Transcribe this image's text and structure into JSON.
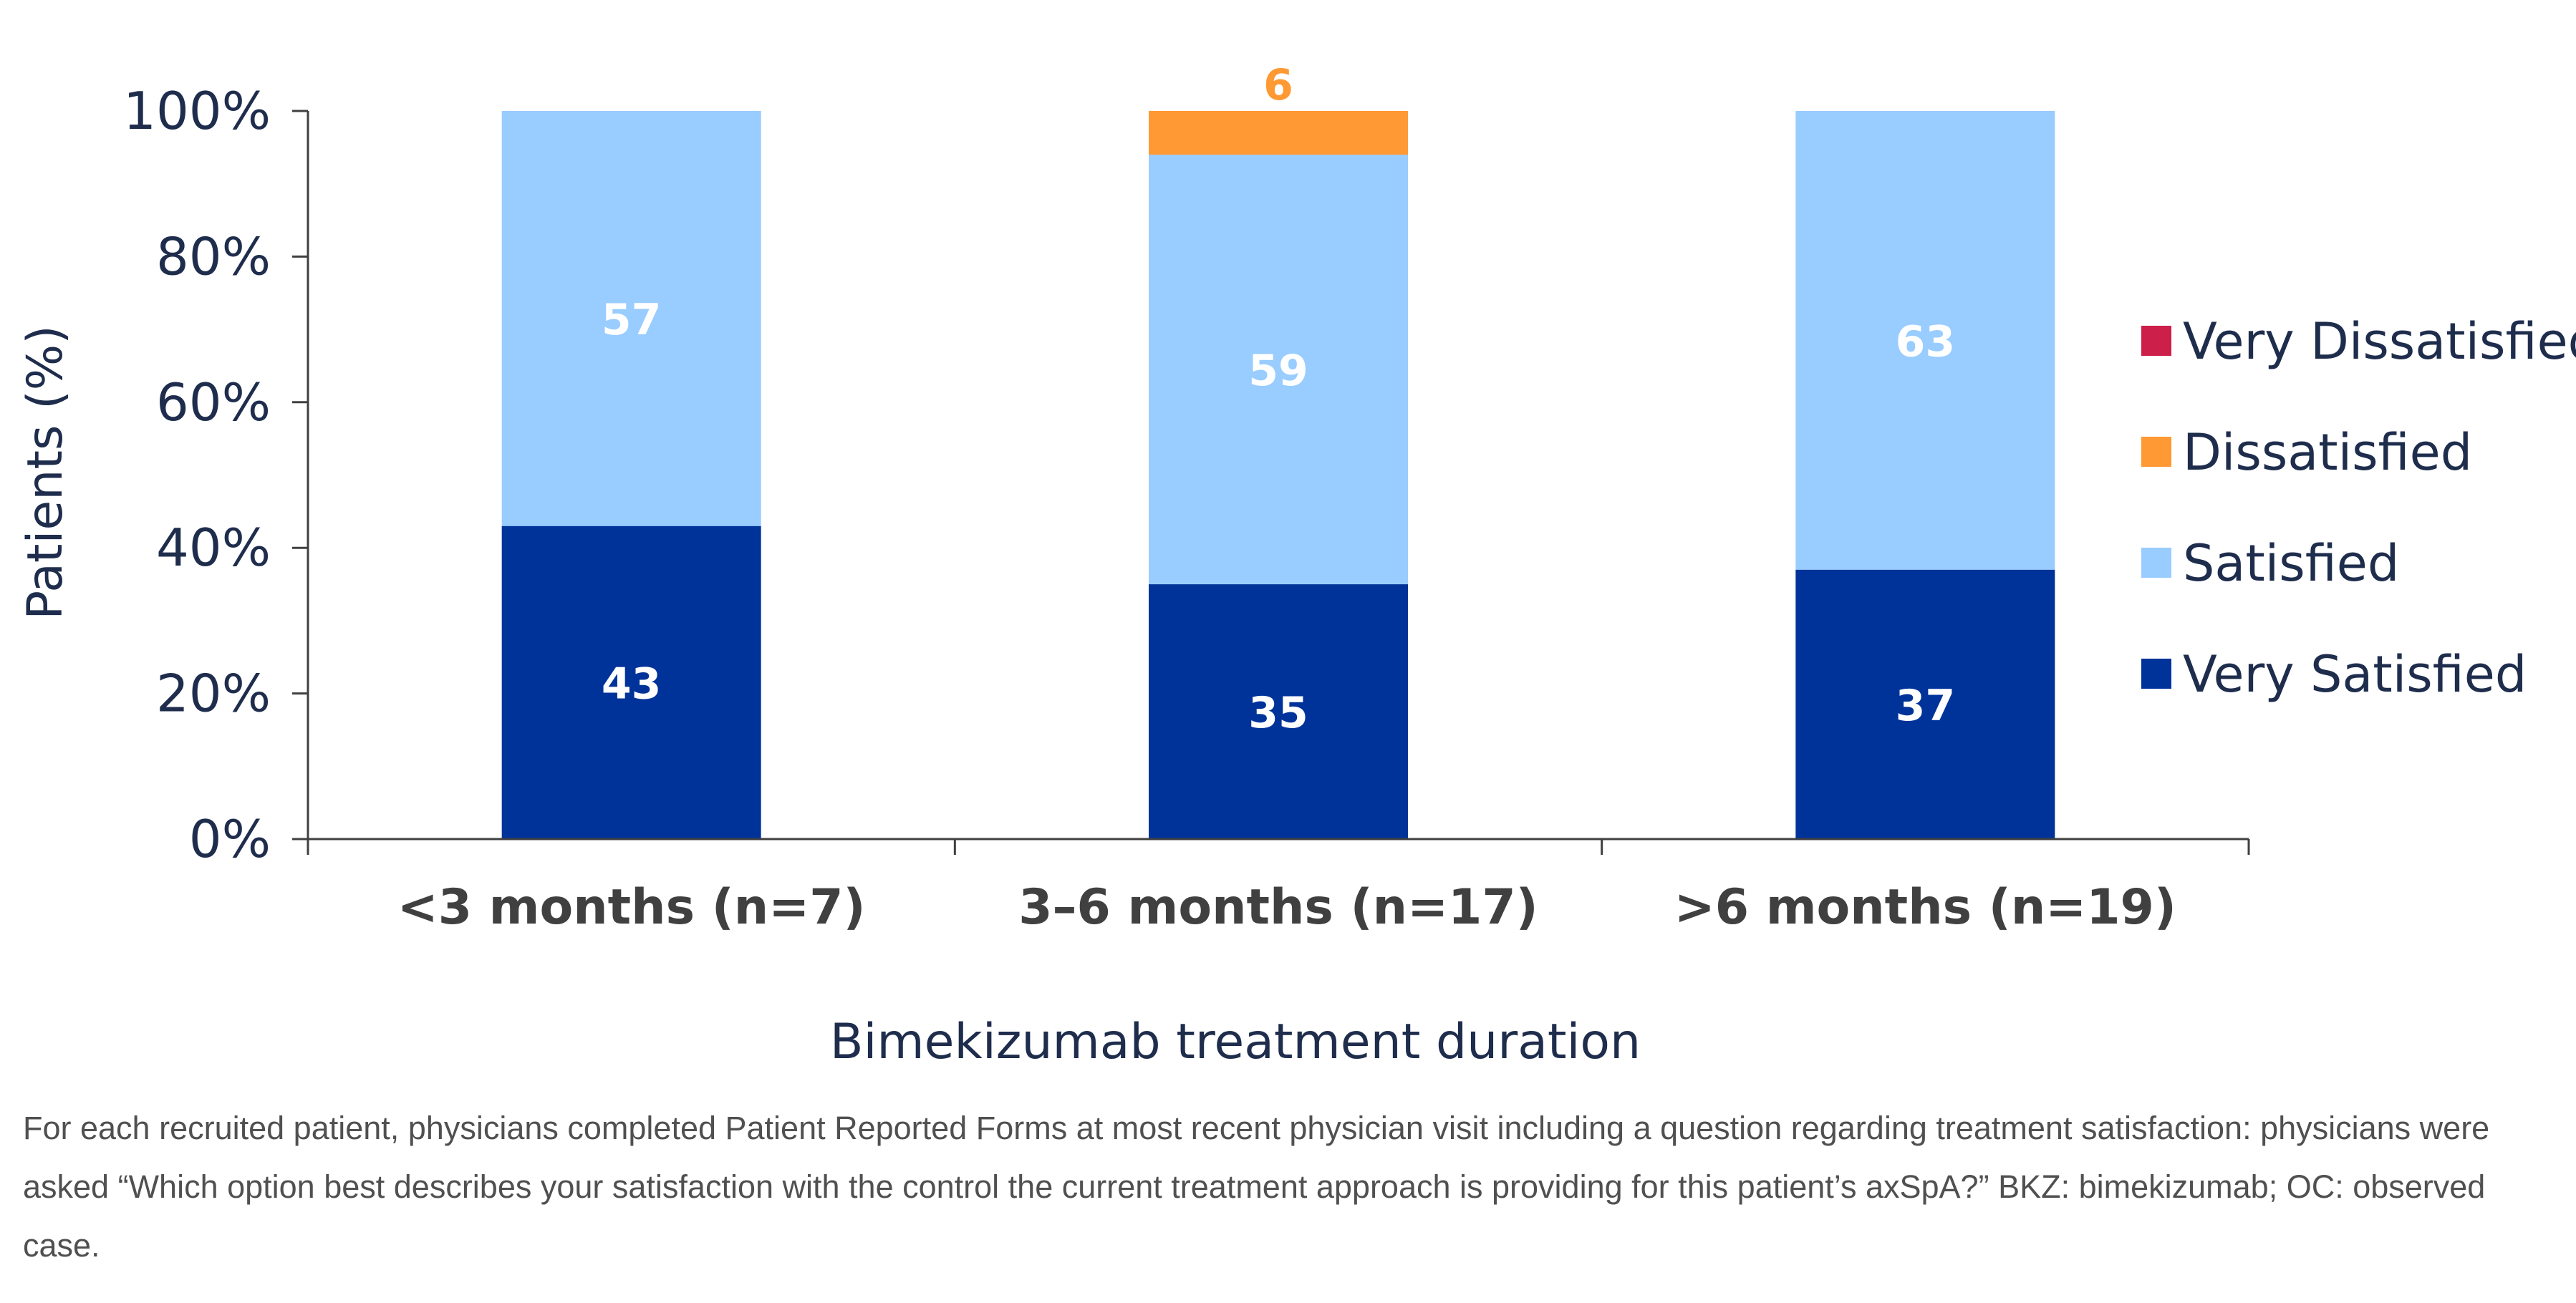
{
  "chart_data": {
    "type": "bar",
    "stacked": true,
    "categories": [
      "<3 months (n=7)",
      "3–6 months (n=17)",
      ">6 months (n=19)"
    ],
    "series": [
      {
        "name": "Very Satisfied",
        "values": [
          43,
          35,
          37
        ],
        "color": "#003399",
        "label_color": "#ffffff"
      },
      {
        "name": "Satisfied",
        "values": [
          57,
          59,
          63
        ],
        "color": "#99ccff",
        "label_color": "#ffffff"
      },
      {
        "name": "Dissatisfied",
        "values": [
          0,
          6,
          0
        ],
        "color": "#ff9933",
        "label_color": "#ff9933"
      },
      {
        "name": "Very Dissatisfied",
        "values": [
          0,
          0,
          0
        ],
        "color": "#cc1f4a",
        "label_color": "#ffffff"
      }
    ],
    "data_labels": [
      [
        "43",
        "35",
        "37"
      ],
      [
        "57",
        "59",
        "63"
      ],
      [
        "",
        "6",
        ""
      ],
      [
        "",
        "",
        ""
      ]
    ],
    "ylabel": "Patients (%)",
    "xlabel": "Bimekizumab treatment duration",
    "ylim": [
      0,
      100
    ],
    "yticks": [
      "0%",
      "20%",
      "40%",
      "60%",
      "80%",
      "100%"
    ],
    "ytick_values": [
      0,
      20,
      40,
      60,
      80,
      100
    ],
    "legend_order": [
      "Very Dissatisfied",
      "Dissatisfied",
      "Satisfied",
      "Very Satisfied"
    ],
    "legend_position": "right",
    "grid": false
  },
  "footnote": "For each recruited patient, physicians completed Patient Reported Forms at most recent physician visit including a question regarding treatment satisfaction: physicians were asked “Which option best describes your satisfaction with the control the current treatment approach is providing for this patient’s axSpA?” BKZ: bimekizumab; OC: observed case.",
  "colors": {
    "axis": "#404040",
    "text_dark": "#1f2d4d",
    "footnote": "#505050"
  }
}
